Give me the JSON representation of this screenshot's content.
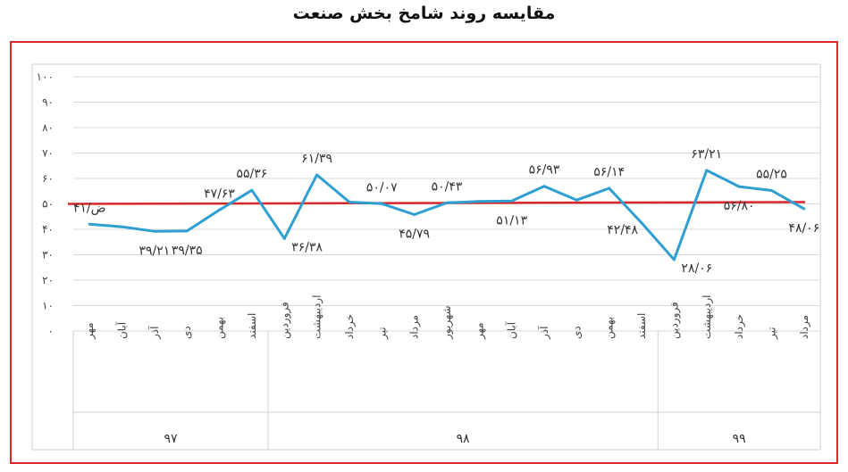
{
  "title": "مقایسه روند شامخ بخش صنعت",
  "chart_data": {
    "type": "line",
    "title": "مقایسه روند شامخ بخش صنعت",
    "categories": [
      "مهر",
      "آبان",
      "آذر",
      "دی",
      "بهمن",
      "اسفند",
      "فروردین",
      "اردیبهشت",
      "خرداد",
      "تیر",
      "مرداد",
      "شهریور",
      "مهر",
      "آبان",
      "آذر",
      "دی",
      "بهمن",
      "اسفند",
      "فروردین",
      "اردیبهشت",
      "خرداد",
      "تیر",
      "مرداد"
    ],
    "years": [
      {
        "label": "۹۷",
        "start": 0,
        "end": 5
      },
      {
        "label": "۹۸",
        "start": 6,
        "end": 17
      },
      {
        "label": "۹۹",
        "start": 18,
        "end": 22
      }
    ],
    "series": [
      {
        "values": [
          42,
          41,
          39.21,
          39.35,
          47.63,
          55.36,
          36.38,
          61.39,
          50.7,
          50.07,
          45.79,
          50.43,
          51,
          51.13,
          56.93,
          51.5,
          56.14,
          42.48,
          28.06,
          63.21,
          56.8,
          55.25,
          48.06
        ],
        "color": "#2e9fd0"
      }
    ],
    "reference_line": {
      "value": 50,
      "color": "#d9262b"
    },
    "data_labels": [
      {
        "index": 0,
        "text": "۴۱/ض",
        "pos": "above"
      },
      {
        "index": 2,
        "text": "۳۹/۲۱",
        "pos": "below"
      },
      {
        "index": 3,
        "text": "۳۹/۳۵",
        "pos": "below"
      },
      {
        "index": 4,
        "text": "۴۷/۶۳",
        "pos": "above"
      },
      {
        "index": 5,
        "text": "۵۵/۳۶",
        "pos": "above"
      },
      {
        "index": 6,
        "text": "۳۶/۳۸",
        "pos": "right"
      },
      {
        "index": 7,
        "text": "۶۱/۳۹",
        "pos": "above"
      },
      {
        "index": 9,
        "text": "۵۰/۰۷",
        "pos": "above"
      },
      {
        "index": 10,
        "text": "۴۵/۷۹",
        "pos": "below"
      },
      {
        "index": 11,
        "text": "۵۰/۴۳",
        "pos": "above"
      },
      {
        "index": 13,
        "text": "۵۱/۱۳",
        "pos": "below"
      },
      {
        "index": 14,
        "text": "۵۶/۹۳",
        "pos": "above"
      },
      {
        "index": 16,
        "text": "۵۶/۱۴",
        "pos": "above"
      },
      {
        "index": 17,
        "text": "۴۲/۴۸",
        "pos": "left"
      },
      {
        "index": 18,
        "text": "۲۸/۰۶",
        "pos": "right"
      },
      {
        "index": 19,
        "text": "۶۳/۲۱",
        "pos": "above"
      },
      {
        "index": 20,
        "text": "۵۶/۸۰",
        "pos": "below"
      },
      {
        "index": 21,
        "text": "۵۵/۲۵",
        "pos": "above"
      },
      {
        "index": 22,
        "text": "۴۸/۰۶",
        "pos": "below"
      }
    ],
    "yticks": [
      "۰",
      "۱۰",
      "۲۰",
      "۳۰",
      "۴۰",
      "۵۰",
      "۶۰",
      "۷۰",
      "۸۰",
      "۹۰",
      "۱۰۰"
    ],
    "ylim": [
      0,
      100
    ],
    "grid": true,
    "legend": "none"
  }
}
